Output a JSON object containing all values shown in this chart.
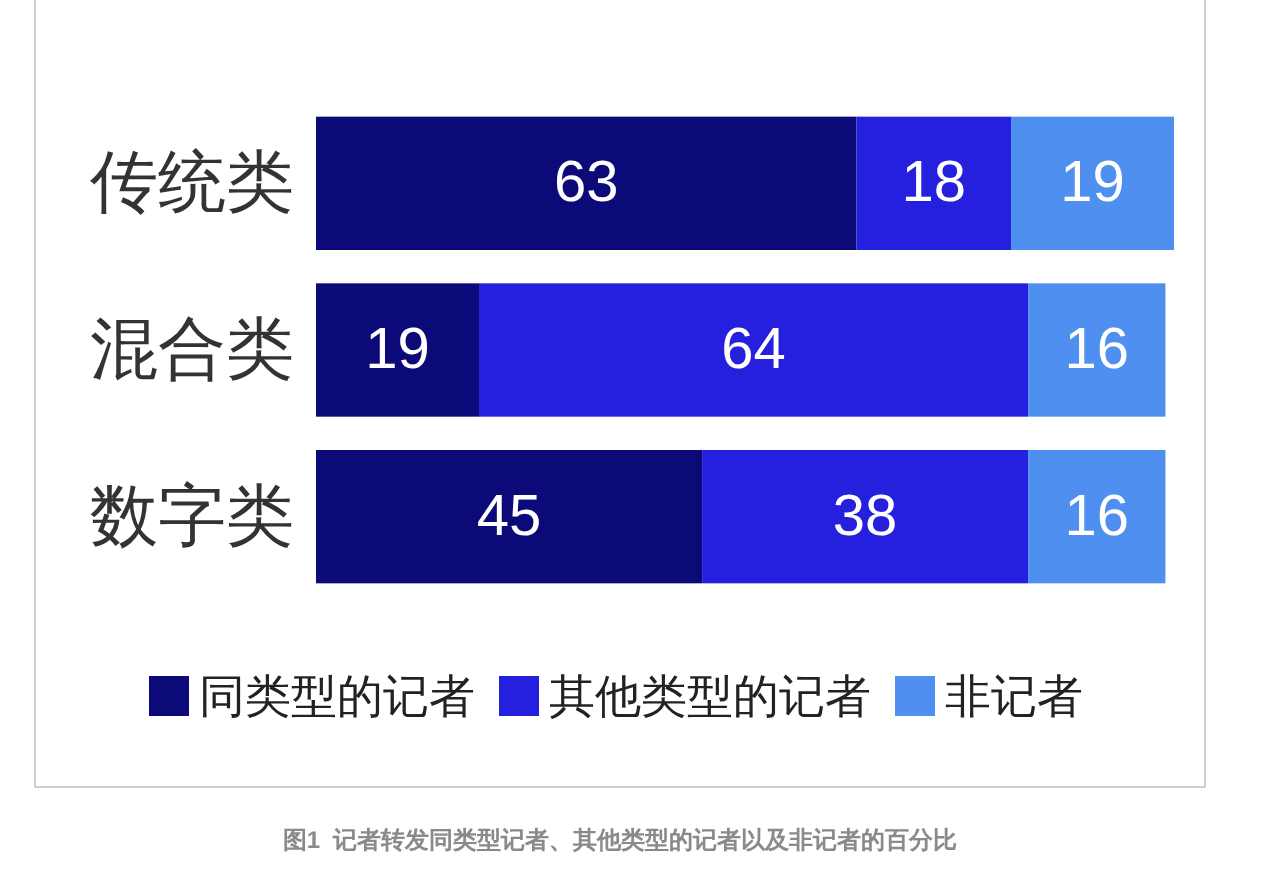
{
  "chart_data": {
    "type": "bar",
    "orientation": "horizontal",
    "stacked": true,
    "categories": [
      "传统类",
      "混合类",
      "数字类"
    ],
    "series": [
      {
        "name": "同类型的记者",
        "color": "#0b0a78",
        "values": [
          63,
          19,
          45
        ]
      },
      {
        "name": "其他类型的记者",
        "color": "#2520de",
        "values": [
          18,
          64,
          38
        ]
      },
      {
        "name": "非记者",
        "color": "#4f8fef",
        "values": [
          19,
          16,
          16
        ]
      }
    ],
    "xlim": [
      0,
      100
    ],
    "tick_labels": "y",
    "data_labels": true,
    "legend": "bottom",
    "annotations": [
      "图1  记者转发同类型记者、其他类型的记者以及非记者的百分比"
    ]
  }
}
